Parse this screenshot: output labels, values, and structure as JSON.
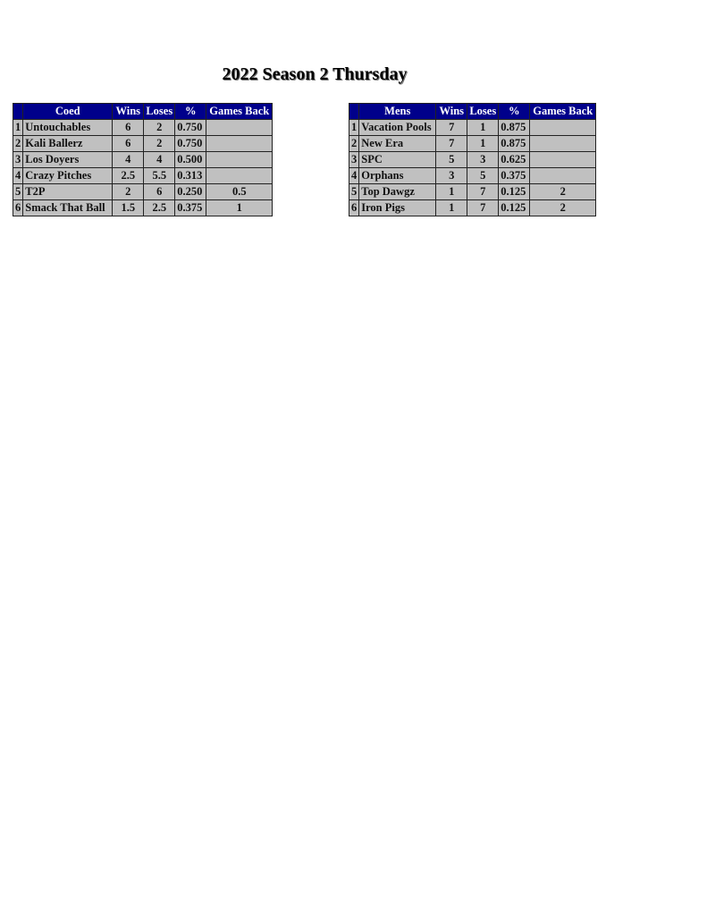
{
  "title": "2022 Season 2 Thursday",
  "colors": {
    "header_bg": "#00008b",
    "header_text": "#ffffff",
    "cell_bg": "#c0c0c0"
  },
  "tables": [
    {
      "id": "coed",
      "headers": [
        "",
        "Coed",
        "Wins",
        "Loses",
        "%",
        "Games Back"
      ],
      "rows": [
        [
          "1",
          "Untouchables",
          "6",
          "2",
          "0.750",
          ""
        ],
        [
          "2",
          "Kali Ballerz",
          "6",
          "2",
          "0.750",
          ""
        ],
        [
          "3",
          "Los Doyers",
          "4",
          "4",
          "0.500",
          ""
        ],
        [
          "4",
          "Crazy Pitches",
          "2.5",
          "5.5",
          "0.313",
          ""
        ],
        [
          "5",
          "T2P",
          "2",
          "6",
          "0.250",
          "0.5"
        ],
        [
          "6",
          "Smack That Ball",
          "1.5",
          "2.5",
          "0.375",
          "1"
        ]
      ]
    },
    {
      "id": "mens",
      "headers": [
        "",
        "Mens",
        "Wins",
        "Loses",
        "%",
        "Games Back"
      ],
      "rows": [
        [
          "1",
          "Vacation Pools",
          "7",
          "1",
          "0.875",
          ""
        ],
        [
          "2",
          "New Era",
          "7",
          "1",
          "0.875",
          ""
        ],
        [
          "3",
          "SPC",
          "5",
          "3",
          "0.625",
          ""
        ],
        [
          "4",
          "Orphans",
          "3",
          "5",
          "0.375",
          ""
        ],
        [
          "5",
          "Top Dawgz",
          "1",
          "7",
          "0.125",
          "2"
        ],
        [
          "6",
          "Iron Pigs",
          "1",
          "7",
          "0.125",
          "2"
        ]
      ]
    }
  ]
}
